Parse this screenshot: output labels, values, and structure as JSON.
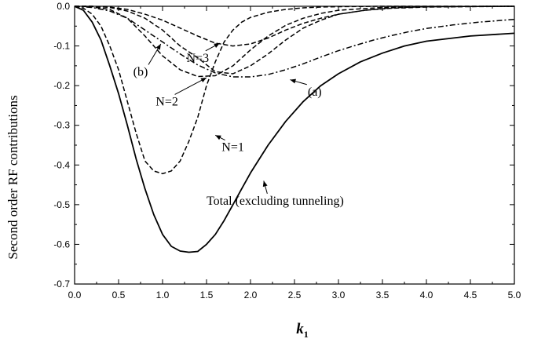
{
  "chart_data": {
    "type": "line",
    "xlabel": "k",
    "xlabel_sub": "1",
    "ylabel": "Second order RF contributions",
    "xlim": [
      0.0,
      5.0
    ],
    "ylim": [
      -0.7,
      0.0
    ],
    "x_ticks": [
      "0.0",
      "0.5",
      "1.0",
      "1.5",
      "2.0",
      "2.5",
      "3.0",
      "3.5",
      "4.0",
      "4.5",
      "5.0"
    ],
    "y_ticks": [
      "0.0",
      "-0.1",
      "-0.2",
      "-0.3",
      "-0.4",
      "-0.5",
      "-0.6",
      "-0.7"
    ],
    "grid": false,
    "legend": "none",
    "series": [
      {
        "key": "total",
        "style": "solid",
        "x": [
          0,
          0.1,
          0.2,
          0.3,
          0.4,
          0.5,
          0.6,
          0.7,
          0.8,
          0.9,
          1.0,
          1.1,
          1.2,
          1.3,
          1.4,
          1.5,
          1.6,
          1.7,
          1.8,
          1.9,
          2.0,
          2.2,
          2.4,
          2.6,
          2.8,
          3.0,
          3.25,
          3.5,
          3.75,
          4.0,
          4.5,
          5.0
        ],
        "y": [
          0,
          -0.01,
          -0.04,
          -0.085,
          -0.15,
          -0.22,
          -0.3,
          -0.385,
          -0.46,
          -0.525,
          -0.575,
          -0.605,
          -0.617,
          -0.62,
          -0.618,
          -0.6,
          -0.575,
          -0.54,
          -0.5,
          -0.46,
          -0.42,
          -0.35,
          -0.29,
          -0.24,
          -0.2,
          -0.17,
          -0.14,
          -0.118,
          -0.1,
          -0.088,
          -0.075,
          -0.068
        ]
      },
      {
        "key": "n1",
        "style": "dashed",
        "x": [
          0,
          0.1,
          0.2,
          0.3,
          0.4,
          0.5,
          0.6,
          0.7,
          0.8,
          0.9,
          1.0,
          1.1,
          1.2,
          1.3,
          1.4,
          1.5,
          1.6,
          1.7,
          1.8,
          1.9,
          2.0,
          2.2,
          2.4,
          2.6,
          2.8,
          3.0,
          3.5,
          4.0,
          5.0
        ],
        "y": [
          0,
          -0.005,
          -0.02,
          -0.05,
          -0.1,
          -0.16,
          -0.24,
          -0.32,
          -0.39,
          -0.415,
          -0.422,
          -0.415,
          -0.39,
          -0.34,
          -0.28,
          -0.2,
          -0.14,
          -0.09,
          -0.06,
          -0.04,
          -0.028,
          -0.015,
          -0.008,
          -0.004,
          -0.002,
          -0.001,
          0,
          0,
          0
        ]
      },
      {
        "key": "n2",
        "style": "dashed",
        "x": [
          0,
          0.2,
          0.4,
          0.6,
          0.8,
          1.0,
          1.2,
          1.4,
          1.6,
          1.8,
          2.0,
          2.2,
          2.4,
          2.6,
          2.8,
          3.0,
          3.5,
          4.0,
          5.0
        ],
        "y": [
          0,
          -0.001,
          -0.008,
          -0.03,
          -0.075,
          -0.125,
          -0.16,
          -0.177,
          -0.175,
          -0.15,
          -0.11,
          -0.075,
          -0.048,
          -0.03,
          -0.018,
          -0.01,
          -0.003,
          -0.001,
          0
        ]
      },
      {
        "key": "n3",
        "style": "dashed",
        "x": [
          0,
          0.2,
          0.4,
          0.6,
          0.8,
          1.0,
          1.2,
          1.4,
          1.6,
          1.8,
          2.0,
          2.2,
          2.4,
          2.6,
          2.8,
          3.0,
          3.3,
          3.6,
          4.0,
          5.0
        ],
        "y": [
          0,
          0,
          -0.003,
          -0.012,
          -0.03,
          -0.06,
          -0.1,
          -0.13,
          -0.165,
          -0.17,
          -0.15,
          -0.12,
          -0.085,
          -0.055,
          -0.035,
          -0.02,
          -0.01,
          -0.004,
          -0.001,
          0
        ]
      },
      {
        "key": "bcurve",
        "style": "dashed",
        "x": [
          0,
          0.2,
          0.4,
          0.6,
          0.8,
          1.0,
          1.2,
          1.4,
          1.6,
          1.8,
          2.0,
          2.2,
          2.4,
          2.6,
          2.8,
          3.0,
          3.3,
          3.6,
          4.0,
          5.0
        ],
        "y": [
          0,
          0,
          -0.002,
          -0.008,
          -0.02,
          -0.035,
          -0.055,
          -0.075,
          -0.093,
          -0.1,
          -0.095,
          -0.08,
          -0.06,
          -0.043,
          -0.03,
          -0.02,
          -0.01,
          -0.005,
          -0.002,
          0
        ]
      },
      {
        "key": "acurve",
        "style": "dashdot",
        "x": [
          0,
          0.2,
          0.4,
          0.6,
          0.8,
          1.0,
          1.2,
          1.4,
          1.6,
          1.8,
          2.0,
          2.2,
          2.4,
          2.6,
          2.8,
          3.0,
          3.2,
          3.4,
          3.6,
          3.8,
          4.0,
          4.3,
          4.6,
          5.0
        ],
        "y": [
          0,
          -0.003,
          -0.012,
          -0.03,
          -0.06,
          -0.09,
          -0.12,
          -0.148,
          -0.168,
          -0.178,
          -0.178,
          -0.172,
          -0.16,
          -0.145,
          -0.128,
          -0.112,
          -0.098,
          -0.085,
          -0.074,
          -0.064,
          -0.056,
          -0.047,
          -0.04,
          -0.033
        ]
      }
    ],
    "annotations": [
      {
        "text": "(b)",
        "at": [
          0.75,
          -0.175
        ],
        "arrow_to": [
          0.98,
          -0.095
        ]
      },
      {
        "text": "N=3",
        "at": [
          1.4,
          -0.14
        ],
        "arrow_to": [
          1.65,
          -0.093
        ]
      },
      {
        "text": "N=2",
        "at": [
          1.05,
          -0.25
        ],
        "arrow_to": [
          1.5,
          -0.18
        ]
      },
      {
        "text": "N=1",
        "at": [
          1.8,
          -0.365
        ],
        "arrow_to": [
          1.6,
          -0.325
        ]
      },
      {
        "text": "(a)",
        "at": [
          2.73,
          -0.225
        ],
        "arrow_to": [
          2.45,
          -0.185
        ]
      },
      {
        "text": "Total (excluding tunneling)",
        "at": [
          2.28,
          -0.5
        ],
        "arrow_to": [
          2.15,
          -0.44
        ]
      }
    ]
  }
}
